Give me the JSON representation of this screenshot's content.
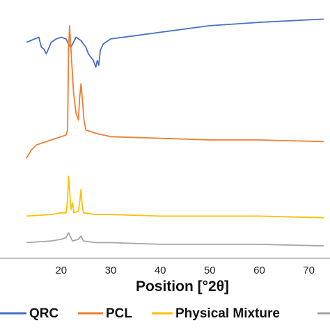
{
  "chart_data": {
    "type": "line",
    "title": "",
    "xlabel": "Position [°2θ]",
    "ylabel": "",
    "xlim": [
      13,
      73
    ],
    "xticks": [
      20,
      30,
      40,
      50,
      60,
      70
    ],
    "grid": false,
    "legend_position": "bottom",
    "series": [
      {
        "name": "QRC",
        "color": "#4472C4",
        "points": [
          [
            13,
            125
          ],
          [
            15.5,
            128
          ],
          [
            16,
            122
          ],
          [
            16.5,
            121
          ],
          [
            17,
            118
          ],
          [
            18,
            125
          ],
          [
            19,
            127
          ],
          [
            20,
            128
          ],
          [
            21,
            127
          ],
          [
            21.5,
            124
          ],
          [
            22,
            122
          ],
          [
            22.5,
            125
          ],
          [
            23,
            128
          ],
          [
            24,
            126
          ],
          [
            25,
            122
          ],
          [
            25.5,
            118
          ],
          [
            26,
            116
          ],
          [
            26.5,
            114
          ],
          [
            27,
            110
          ],
          [
            27.3,
            114
          ],
          [
            27.6,
            111
          ],
          [
            27.9,
            120
          ],
          [
            28.5,
            124
          ],
          [
            30,
            127
          ],
          [
            35,
            129
          ],
          [
            40,
            131
          ],
          [
            50,
            135
          ],
          [
            60,
            137
          ],
          [
            73,
            139
          ]
        ]
      },
      {
        "name": "PCL",
        "color": "#ED7D31",
        "points": [
          [
            13,
            55
          ],
          [
            14,
            60
          ],
          [
            15,
            63
          ],
          [
            16,
            64
          ],
          [
            18,
            66
          ],
          [
            20,
            68
          ],
          [
            21,
            69
          ],
          [
            21.3,
            72
          ],
          [
            21.5,
            120
          ],
          [
            21.7,
            135
          ],
          [
            22,
            120
          ],
          [
            22.5,
            95
          ],
          [
            23,
            82
          ],
          [
            23.5,
            78
          ],
          [
            23.7,
            90
          ],
          [
            24,
            100
          ],
          [
            24.3,
            90
          ],
          [
            24.6,
            78
          ],
          [
            25,
            72
          ],
          [
            27,
            70
          ],
          [
            30,
            68
          ],
          [
            40,
            67
          ],
          [
            50,
            66
          ],
          [
            60,
            66
          ],
          [
            73,
            65
          ]
        ]
      },
      {
        "name": "Physical Mixture",
        "color": "#FFC000",
        "points": [
          [
            13,
            20
          ],
          [
            18,
            21
          ],
          [
            20,
            22
          ],
          [
            21,
            22
          ],
          [
            21.3,
            30
          ],
          [
            21.5,
            44
          ],
          [
            21.7,
            36
          ],
          [
            22,
            24
          ],
          [
            22.3,
            28
          ],
          [
            22.6,
            22
          ],
          [
            23.5,
            23
          ],
          [
            23.8,
            30
          ],
          [
            24,
            36
          ],
          [
            24.2,
            28
          ],
          [
            24.5,
            22
          ],
          [
            27,
            21
          ],
          [
            30,
            21
          ],
          [
            40,
            20
          ],
          [
            50,
            20
          ],
          [
            60,
            20
          ],
          [
            73,
            19
          ]
        ]
      },
      {
        "name": "",
        "color": "#A5A5A5",
        "points": [
          [
            13,
            4
          ],
          [
            18,
            5
          ],
          [
            20,
            6
          ],
          [
            21,
            7
          ],
          [
            21.5,
            10
          ],
          [
            21.8,
            8
          ],
          [
            22.3,
            5
          ],
          [
            23.5,
            6
          ],
          [
            24,
            8
          ],
          [
            24.5,
            5
          ],
          [
            27,
            4
          ],
          [
            30,
            4
          ],
          [
            40,
            3
          ],
          [
            50,
            3
          ],
          [
            60,
            3
          ],
          [
            73,
            2
          ]
        ]
      }
    ]
  }
}
